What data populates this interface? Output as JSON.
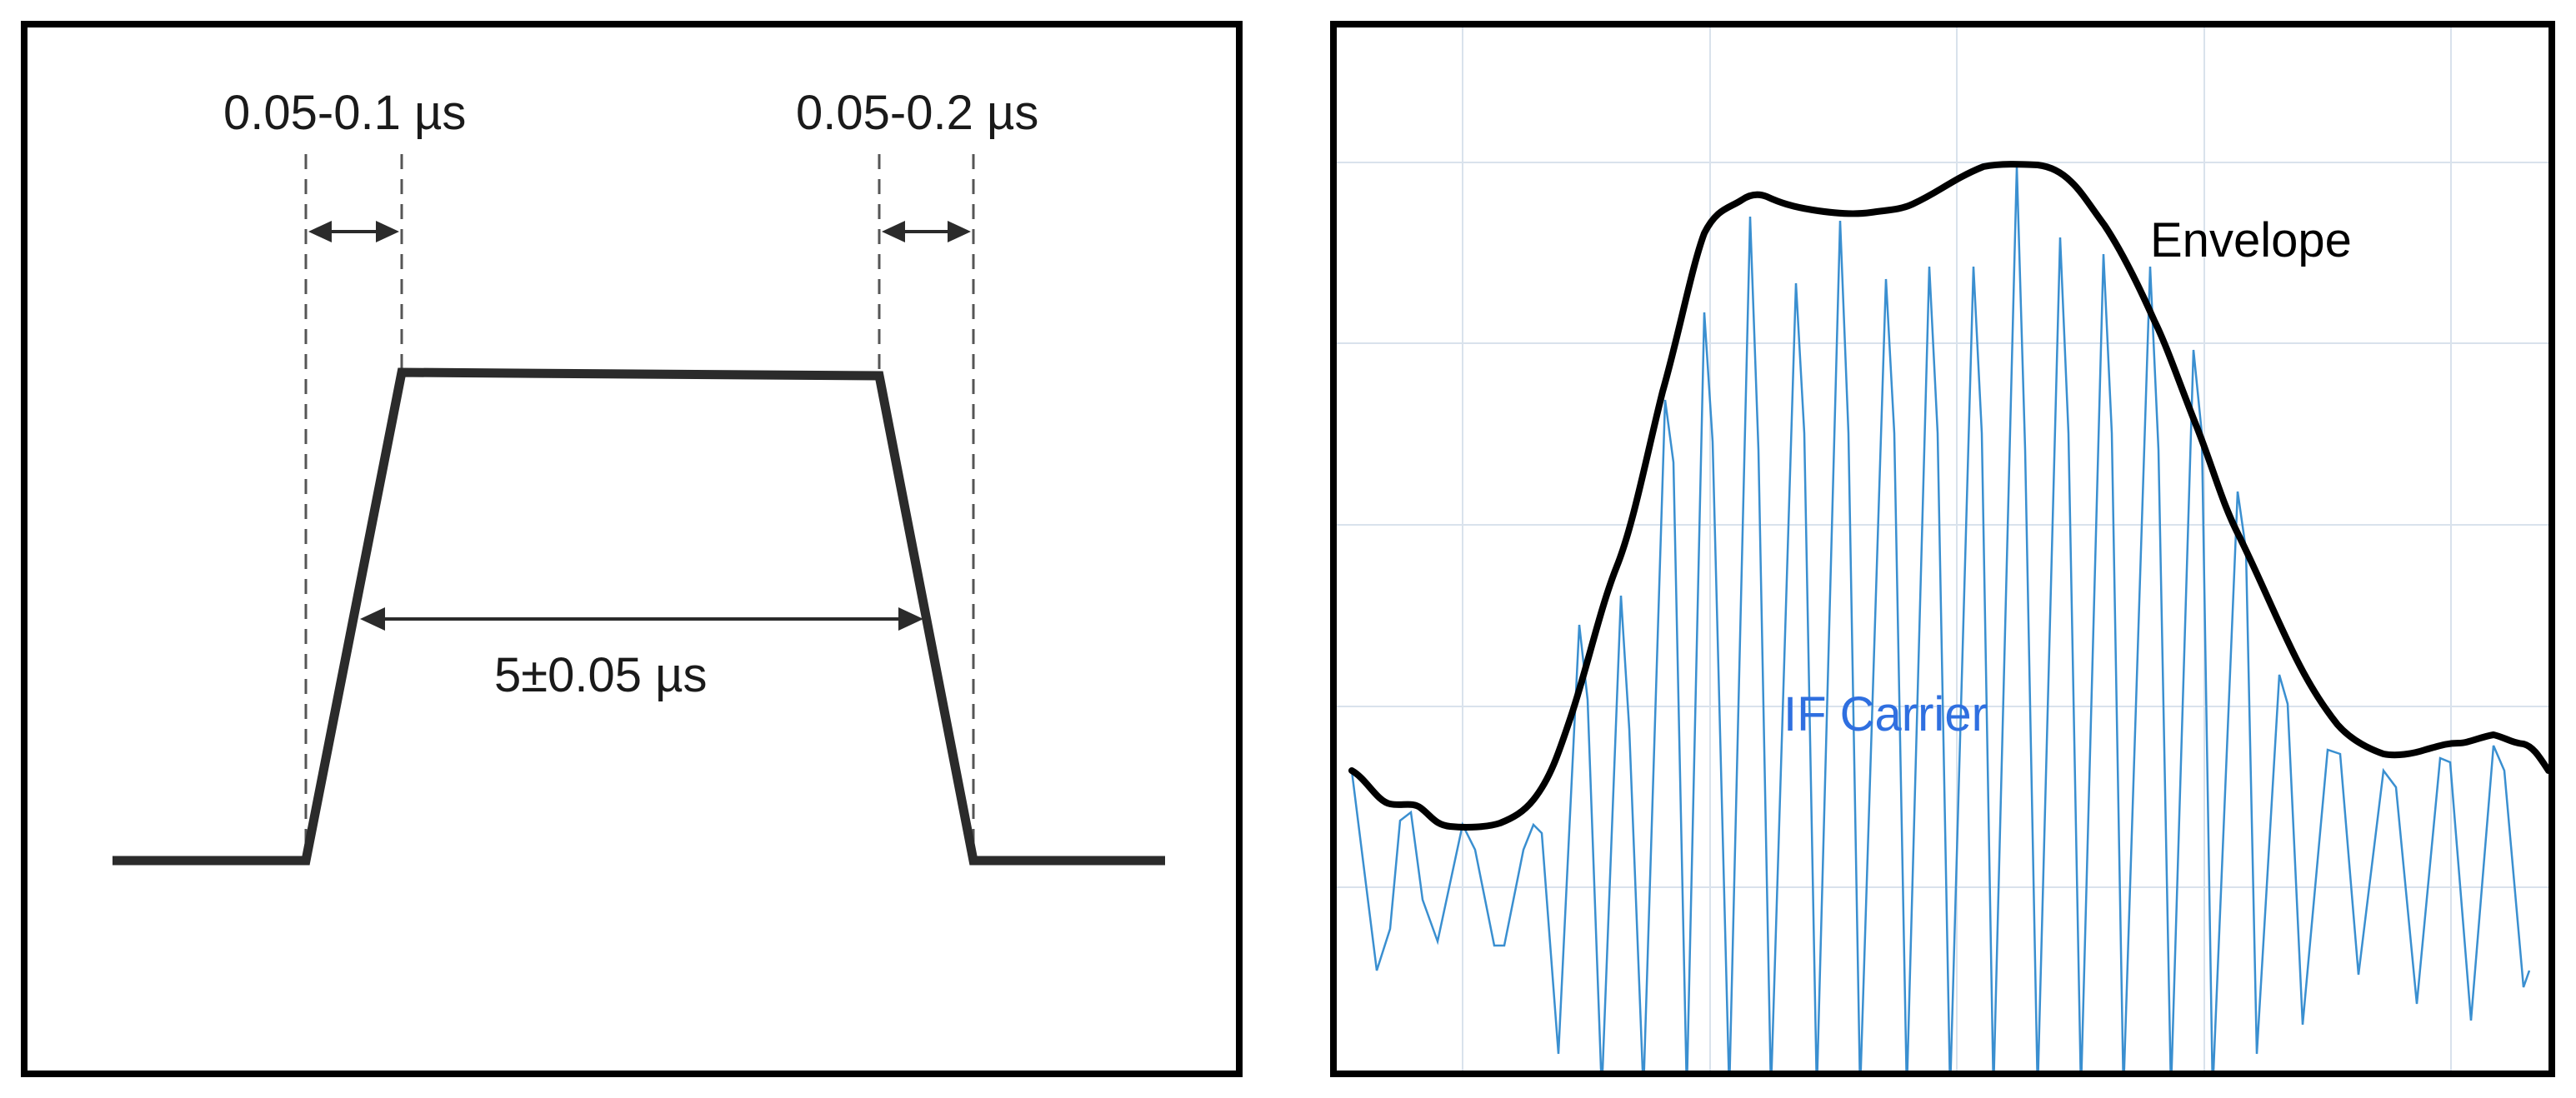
{
  "left_panel": {
    "rise_time_label": "0.05-0.1 µs",
    "fall_time_label": "0.05-0.2 µs",
    "pulse_width_label": "5±0.05 µs"
  },
  "right_panel": {
    "envelope_label": "Envelope",
    "carrier_label": "IF Carrier"
  },
  "colors": {
    "pulse": "#2b2b2b",
    "envelope": "#000000",
    "carrier": "#3a8fd0",
    "carrier_label": "#2f6fe0",
    "grid": "#d9e2ec"
  }
}
